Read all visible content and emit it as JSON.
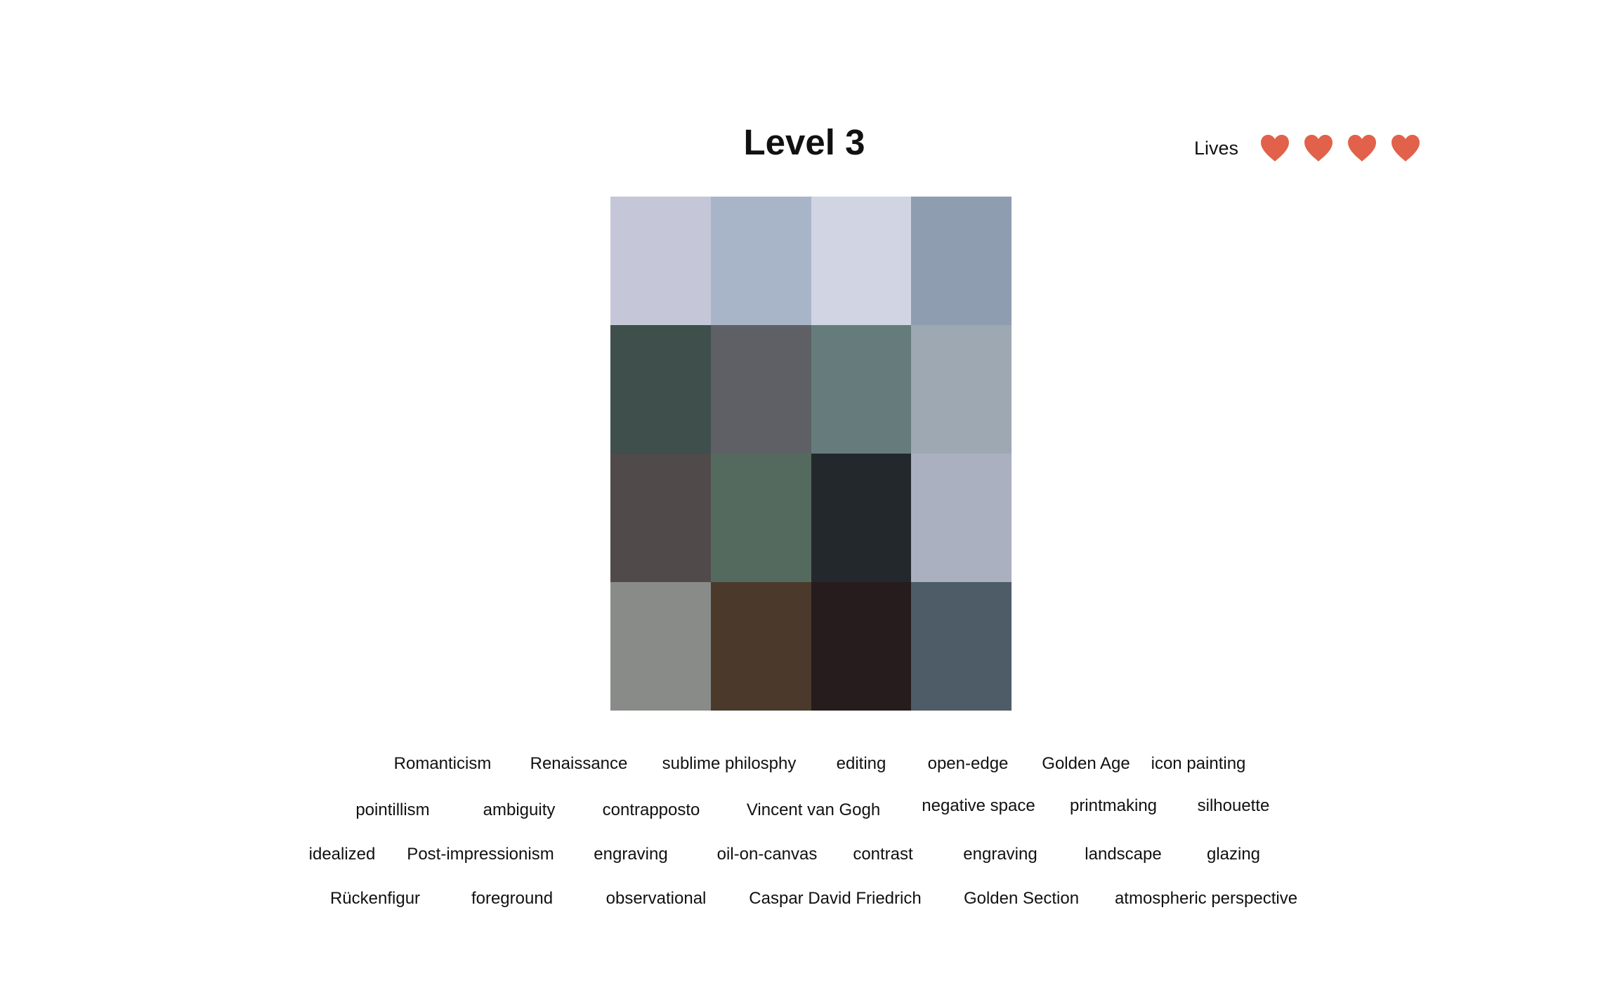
{
  "header": {
    "level_title": "Level 3",
    "lives_label": "Lives"
  },
  "lives": {
    "count": 4,
    "icon": "heart-icon",
    "color": "#E2614A"
  },
  "mosaic": {
    "rows": 4,
    "cols": 4,
    "tiles": [
      "#C5C7D8",
      "#A8B5C8",
      "#D1D4E3",
      "#8F9DB0",
      "#3E4F4C",
      "#5E6065",
      "#667C7C",
      "#9EA8B2",
      "#504A4B",
      "#556A5E",
      "#23282C",
      "#AAB0C0",
      "#898B89",
      "#4B3A2C",
      "#261C1D",
      "#4E5C67"
    ]
  },
  "word_bank": {
    "rows": [
      [
        "Romanticism",
        "Renaissance",
        "sublime philosphy",
        "editing",
        "open-edge",
        "Golden Age",
        "icon painting"
      ],
      [
        "pointillism",
        "ambiguity",
        "contrapposto",
        "Vincent van Gogh",
        "negative space",
        "printmaking",
        "silhouette"
      ],
      [
        "idealized",
        "Post-impressionism",
        "engraving",
        "oil-on-canvas",
        "contrast",
        "engraving",
        "landscape",
        "glazing"
      ],
      [
        "Rückenfigur",
        "foreground",
        "observational",
        "Caspar David Friedrich",
        "Golden Section",
        "atmospheric perspective"
      ]
    ]
  }
}
